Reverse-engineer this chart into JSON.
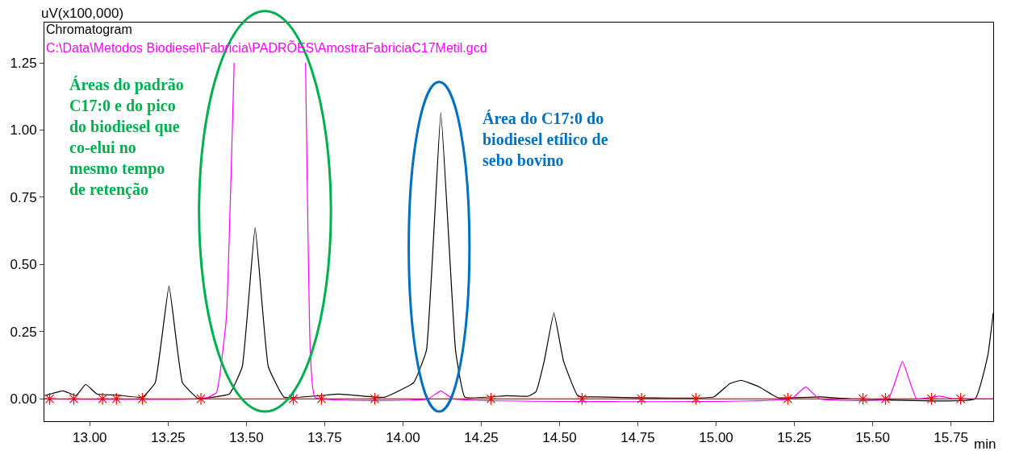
{
  "chart_data": {
    "type": "line",
    "title": "Chromatogram",
    "ylabel": "uV(x100,000)",
    "xlabel": "min",
    "xlim": [
      12.855,
      15.885
    ],
    "ylim": [
      -0.083,
      1.4
    ],
    "xticks": [
      {
        "value": 13.0,
        "label": "13.00"
      },
      {
        "value": 13.25,
        "label": "13.25"
      },
      {
        "value": 13.5,
        "label": "13.50"
      },
      {
        "value": 13.75,
        "label": "13.75"
      },
      {
        "value": 14.0,
        "label": "14.00"
      },
      {
        "value": 14.25,
        "label": "14.25"
      },
      {
        "value": 14.5,
        "label": "14.50"
      },
      {
        "value": 14.75,
        "label": "14.75"
      },
      {
        "value": 15.0,
        "label": "15.00"
      },
      {
        "value": 15.25,
        "label": "15.25"
      },
      {
        "value": 15.5,
        "label": "15.50"
      },
      {
        "value": 15.75,
        "label": "15.75"
      }
    ],
    "yticks": [
      {
        "value": 0,
        "label": "0.00"
      },
      {
        "value": 0.25,
        "label": "0.25"
      },
      {
        "value": 0.5,
        "label": "0.50"
      },
      {
        "value": 0.75,
        "label": "0.75"
      },
      {
        "value": 1.0,
        "label": "1.00"
      },
      {
        "value": 1.25,
        "label": "1.25"
      }
    ],
    "legend": false,
    "series": [
      {
        "color": "#000000",
        "x": [
          12.856,
          12.915,
          12.956,
          12.987,
          13.023,
          13.088,
          13.168,
          13.209,
          13.253,
          13.296,
          13.346,
          13.446,
          13.487,
          13.528,
          13.57,
          13.621,
          13.796,
          13.941,
          14.034,
          14.075,
          14.121,
          14.168,
          14.198,
          14.332,
          14.4,
          14.425,
          14.451,
          14.482,
          14.513,
          14.559,
          14.62,
          14.992,
          15.044,
          15.08,
          15.137,
          15.198,
          15.332,
          15.43,
          15.827,
          15.868,
          15.885
        ],
        "values": [
          0.012,
          0.03,
          0.012,
          0.054,
          0.018,
          0.014,
          0.006,
          0.06,
          0.42,
          0.06,
          0.002,
          0.018,
          0.12,
          0.637,
          0.12,
          0.006,
          0.018,
          0.006,
          0.06,
          0.18,
          1.065,
          0.18,
          0.006,
          0.012,
          0.01,
          0.027,
          0.14,
          0.32,
          0.14,
          0.01,
          0.007,
          0.007,
          0.057,
          0.069,
          0.045,
          0.004,
          0.007,
          0.0,
          0.0,
          0.164,
          0.32
        ]
      },
      {
        "name": "C:\\Data\\Metodos Biodiesel\\Fabricia\\PADRÕES\\AmostraFabriciaC17Metil.gcd",
        "color": "#ff00ff",
        "x": [
          12.856,
          13.37,
          13.405,
          13.436,
          13.461,
          13.58,
          13.689,
          13.704,
          13.719,
          14.08,
          14.121,
          14.16,
          15.24,
          15.286,
          15.33,
          15.55,
          15.595,
          15.64,
          15.714,
          15.76,
          15.885
        ],
        "values": [
          0.0,
          0.002,
          0.024,
          0.3,
          1.25,
          null,
          1.25,
          0.18,
          0.005,
          0.0,
          0.03,
          0.0,
          0.0,
          0.045,
          0.0,
          0.0,
          0.14,
          0.0,
          0.01,
          0.0,
          0.0
        ]
      },
      {
        "type": "scatter",
        "color": "#ff0000",
        "marker": "cross",
        "x": [
          12.872,
          12.949,
          13.041,
          13.085,
          13.168,
          13.355,
          13.65,
          13.74,
          13.91,
          14.281,
          14.572,
          14.762,
          14.936,
          15.229,
          15.469,
          15.541,
          15.688,
          15.781
        ],
        "values": [
          0,
          0,
          0,
          0,
          0,
          0,
          0,
          0,
          0,
          0,
          0,
          0,
          0,
          0,
          0,
          0,
          0,
          0
        ]
      }
    ],
    "ref_lines": [
      {
        "axis": "y",
        "value": 0,
        "color": "#ff0000"
      }
    ],
    "annotations": [
      "Áreas do padrão\nC17:0 e do pico\ndo biodiesel que\nco-elui no\nmesmo tempo\nde retenção",
      "Área do C17:0 do\nbiodiesel etílico de\nsebo bovino"
    ]
  }
}
